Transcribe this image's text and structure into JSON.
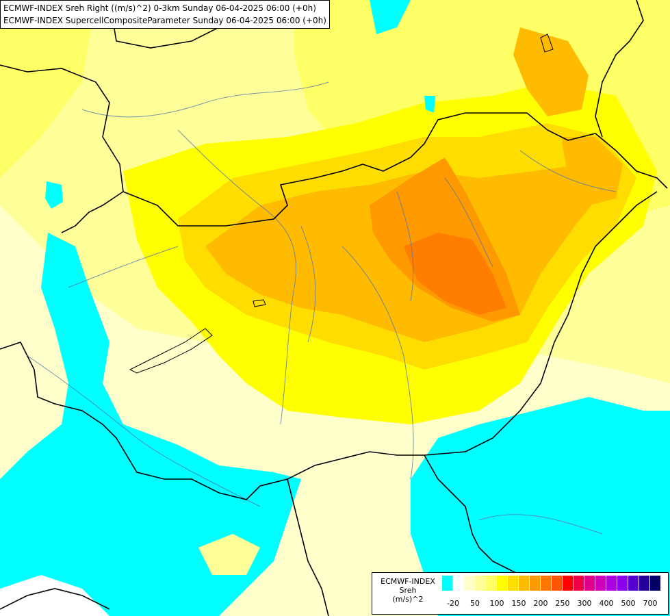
{
  "map": {
    "title_line1": "ECMWF-INDEX Sreh Right ((m/s)^2) 0-3km Sunday 06-04-2025 06:00 (+0h)",
    "title_line2": "ECMWF-INDEX SupercellCompositeParameter Sunday 06-04-2025 06:00 (+0h)"
  },
  "legend": {
    "name_line1": "ECMWF-INDEX",
    "name_line2": "Sreh",
    "name_line3": "(m/s)^2",
    "colors": [
      "#00ffff",
      "#ffffff",
      "#ffffcc",
      "#ffff99",
      "#ffff66",
      "#ffff00",
      "#ffdd00",
      "#ffbb00",
      "#ff9900",
      "#ff7700",
      "#ff5500",
      "#ff0000",
      "#ee0044",
      "#dd0088",
      "#cc00bb",
      "#aa00dd",
      "#8800ee",
      "#5500cc",
      "#220099",
      "#000066"
    ],
    "ticks": [
      "-20",
      "50",
      "100",
      "150",
      "200",
      "250",
      "300",
      "400",
      "500",
      "700"
    ]
  }
}
